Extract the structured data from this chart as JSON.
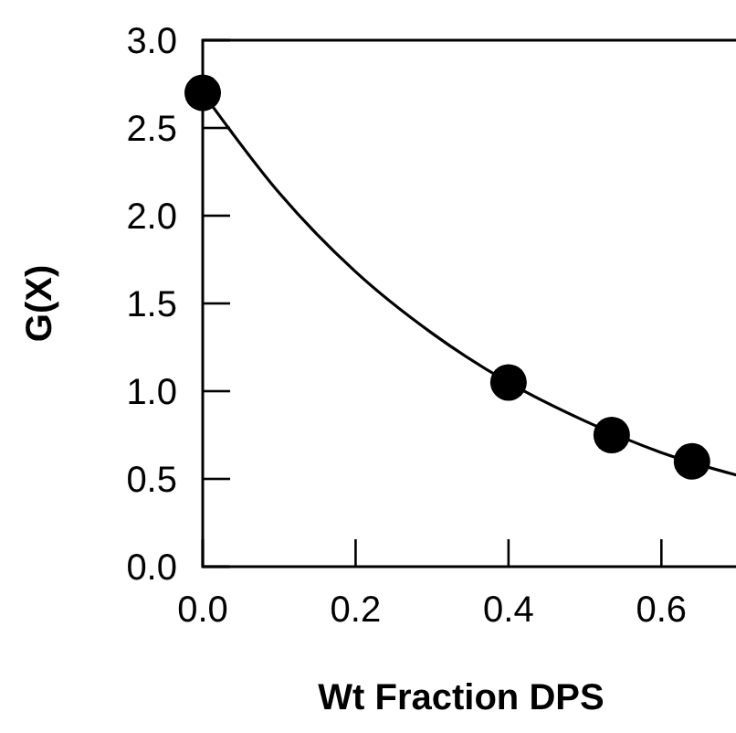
{
  "chart_data": {
    "type": "scatter",
    "xlabel": "Wt Fraction DPS",
    "ylabel": "G(X)",
    "xlim": [
      0,
      0.7
    ],
    "ylim": [
      0,
      3.0
    ],
    "xticks": [
      {
        "value": 0,
        "label": "0.0"
      },
      {
        "value": 0.2,
        "label": "0.2"
      },
      {
        "value": 0.4,
        "label": "0.4"
      },
      {
        "value": 0.6,
        "label": "0.6"
      }
    ],
    "yticks": [
      {
        "value": 0,
        "label": "0.0"
      },
      {
        "value": 0.5,
        "label": "0.5"
      },
      {
        "value": 1,
        "label": "1.0"
      },
      {
        "value": 1.5,
        "label": "1.5"
      },
      {
        "value": 2,
        "label": "2.0"
      },
      {
        "value": 2.5,
        "label": "2.5"
      },
      {
        "value": 3,
        "label": "3.0"
      }
    ],
    "marker": "circle",
    "grid": false,
    "series": [
      {
        "type": "line",
        "color": "#000000",
        "x": [
          0,
          0.1,
          0.2,
          0.3,
          0.4,
          0.5,
          0.6,
          0.7
        ],
        "values": [
          2.7,
          2.13,
          1.68,
          1.33,
          1.05,
          0.83,
          0.65,
          0.52
        ],
        "marker": "none",
        "line_style": "solid"
      },
      {
        "color": "#000000",
        "x": [
          0,
          0.4,
          0.535,
          0.64
        ],
        "values": [
          2.7,
          1.05,
          0.75,
          0.6
        ]
      }
    ]
  }
}
